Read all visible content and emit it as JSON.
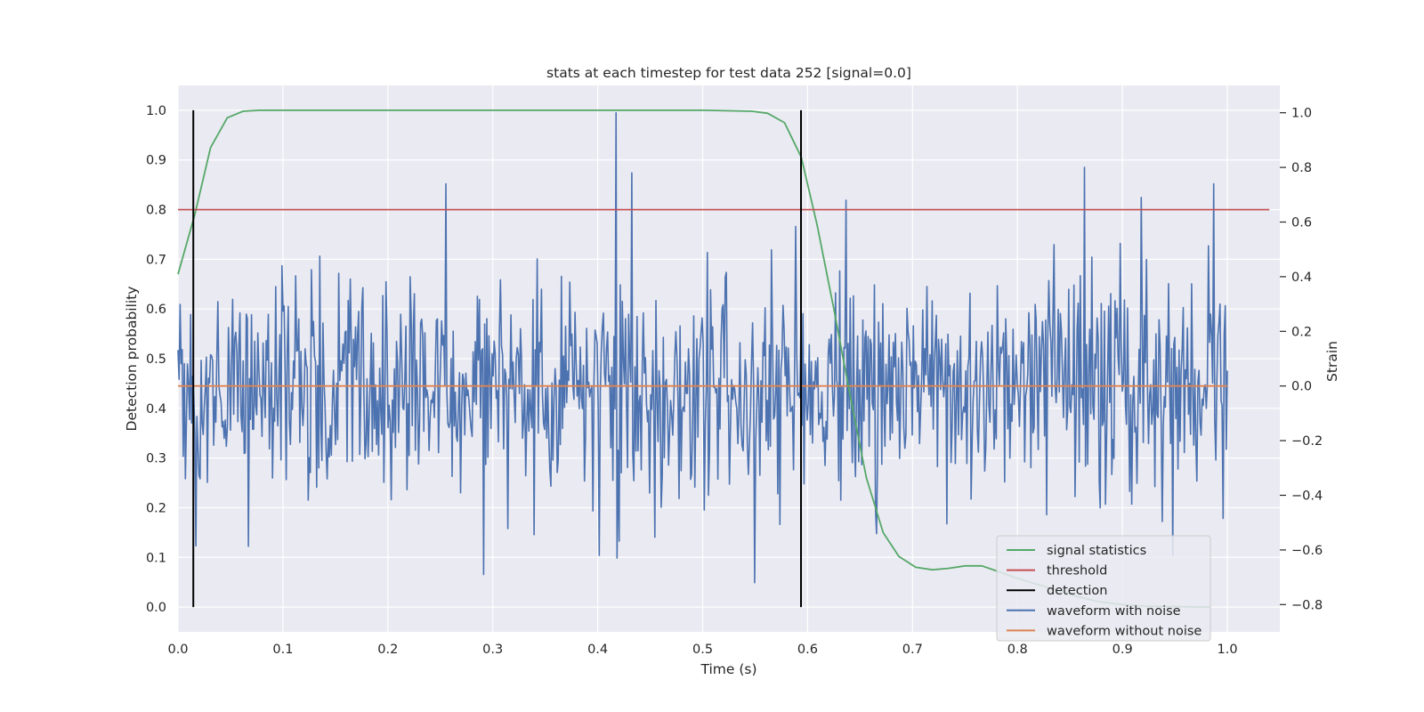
{
  "chart_data": {
    "type": "line",
    "title": "stats at each timestep for test data 252 [signal=0.0]",
    "xlabel": "Time (s)",
    "ylabel": "Detection probability",
    "y2label": "Strain",
    "xlim": [
      0.0,
      1.05
    ],
    "ylim": [
      -0.05,
      1.05
    ],
    "y2lim": [
      -0.9,
      1.1
    ],
    "x_ticks": [
      0.0,
      0.1,
      0.2,
      0.3,
      0.4,
      0.5,
      0.6,
      0.7,
      0.8,
      0.9,
      1.0
    ],
    "x_tick_labels": [
      "0.0",
      "0.1",
      "0.2",
      "0.3",
      "0.4",
      "0.5",
      "0.6",
      "0.7",
      "0.8",
      "0.9",
      "1.0"
    ],
    "y_ticks": [
      0.0,
      0.1,
      0.2,
      0.3,
      0.4,
      0.5,
      0.6,
      0.7,
      0.8,
      0.9,
      1.0
    ],
    "y_tick_labels": [
      "0.0",
      "0.1",
      "0.2",
      "0.3",
      "0.4",
      "0.5",
      "0.6",
      "0.7",
      "0.8",
      "0.9",
      "1.0"
    ],
    "y2_ticks": [
      -0.8,
      -0.6,
      -0.4,
      -0.2,
      0.0,
      0.2,
      0.4,
      0.6,
      0.8,
      1.0
    ],
    "y2_tick_labels": [
      "−0.8",
      "−0.6",
      "−0.4",
      "−0.2",
      "0.0",
      "0.2",
      "0.4",
      "0.6",
      "0.8",
      "1.0"
    ],
    "grid": true,
    "legend_position": "bottom-right",
    "series": [
      {
        "name": "signal statistics",
        "color": "#55a868",
        "axis": "left",
        "x": [
          0.0,
          0.016,
          0.031,
          0.047,
          0.062,
          0.078,
          0.094,
          0.109,
          0.125,
          0.25,
          0.4,
          0.5,
          0.547,
          0.562,
          0.578,
          0.594,
          0.609,
          0.625,
          0.641,
          0.656,
          0.672,
          0.687,
          0.703,
          0.719,
          0.734,
          0.75,
          0.766,
          0.781,
          0.797,
          0.812,
          0.828,
          0.844,
          0.859,
          0.875,
          0.891,
          0.906,
          0.922,
          0.937,
          0.953,
          0.969,
          0.984
        ],
        "values": [
          0.67,
          0.79,
          0.925,
          0.985,
          0.998,
          1.0,
          1.0,
          1.0,
          1.0,
          1.0,
          1.0,
          1.0,
          0.998,
          0.994,
          0.975,
          0.905,
          0.77,
          0.6,
          0.42,
          0.26,
          0.15,
          0.102,
          0.08,
          0.075,
          0.078,
          0.083,
          0.083,
          0.072,
          0.06,
          0.05,
          0.04,
          0.03,
          0.02,
          0.012,
          0.007,
          0.004,
          0.002,
          0.001,
          0.001,
          0.0,
          0.0
        ]
      },
      {
        "name": "threshold",
        "color": "#c44e52",
        "axis": "left",
        "x": [
          0.0,
          1.04
        ],
        "values": [
          0.8,
          0.8
        ]
      },
      {
        "name": "detection",
        "color": "#000000",
        "axis": "left",
        "type": "vlines",
        "x": [
          0.0146,
          0.5937
        ],
        "ymin": 0.0,
        "ymax": 1.0
      },
      {
        "name": "waveform with noise",
        "color": "#4c72b0",
        "axis": "right",
        "x_range": [
          0.0,
          1.0
        ],
        "n_points": 1000,
        "std": 0.2,
        "highlights": [
          {
            "x": 0.255,
            "value": 0.74
          },
          {
            "x": 0.291,
            "value": -0.69
          },
          {
            "x": 0.417,
            "value": 1.0
          },
          {
            "x": 0.418,
            "value": -0.63
          },
          {
            "x": 0.432,
            "value": 0.78
          },
          {
            "x": 0.55,
            "value": -0.72
          },
          {
            "x": 0.637,
            "value": 0.68
          },
          {
            "x": 0.864,
            "value": 0.8
          },
          {
            "x": 0.918,
            "value": 0.69
          },
          {
            "x": 0.987,
            "value": 0.74
          }
        ]
      },
      {
        "name": "waveform without noise",
        "color": "#dd8452",
        "axis": "right",
        "x": [
          0.0,
          1.0
        ],
        "values": [
          0.0,
          0.0
        ]
      }
    ],
    "legend": [
      "signal statistics",
      "threshold",
      "detection",
      "waveform with noise",
      "waveform without noise"
    ]
  },
  "colors": {
    "plot_background": "#eaeaf2",
    "grid": "#ffffff",
    "text": "#262626"
  }
}
